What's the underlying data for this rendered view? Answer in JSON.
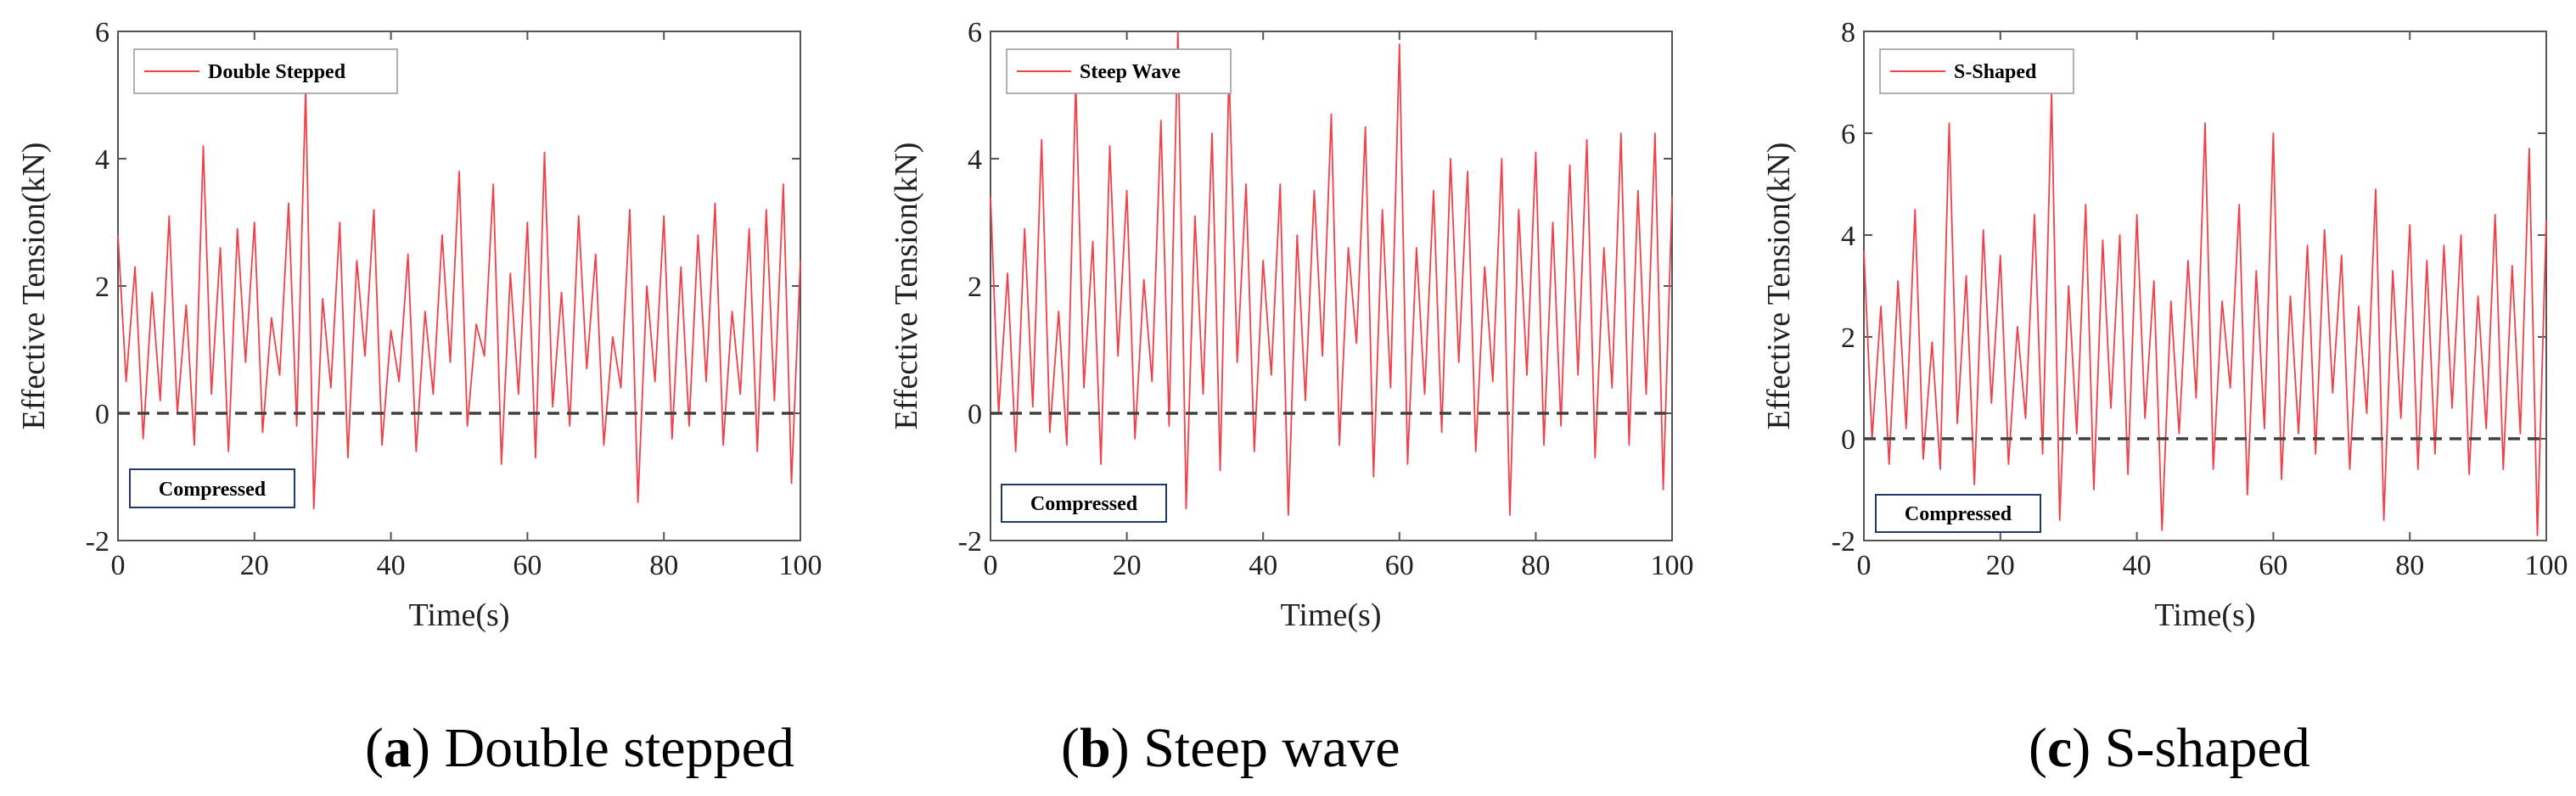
{
  "figure": {
    "captions": [
      {
        "letter": "a",
        "text": "Double stepped"
      },
      {
        "letter": "b",
        "text": "Steep wave"
      },
      {
        "letter": "c",
        "text": "S-shaped"
      }
    ]
  },
  "colors": {
    "series": "#f0404a",
    "threshold": "#404040",
    "axis": "#555555",
    "compressed_border": "#1f3a68"
  },
  "chart_data": [
    {
      "type": "line",
      "title": "",
      "xlabel": "Time(s)",
      "ylabel": "Effective Tension(kN)",
      "xlim": [
        0,
        100
      ],
      "ylim": [
        -2,
        6
      ],
      "xticks": [
        "0",
        "20",
        "40",
        "60",
        "80",
        "100"
      ],
      "yticks": [
        "-2",
        "0",
        "2",
        "4",
        "6"
      ],
      "threshold": 0,
      "annotation": "Compressed",
      "series": [
        {
          "name": "Double Stepped",
          "x": [
            0,
            1.2,
            2.5,
            3.7,
            5,
            6.2,
            7.5,
            8.7,
            10,
            11.2,
            12.5,
            13.7,
            15,
            16.2,
            17.5,
            18.7,
            20,
            21.2,
            22.5,
            23.7,
            25,
            26.2,
            27.5,
            28.7,
            30,
            31.2,
            32.5,
            33.7,
            35,
            36.2,
            37.5,
            38.7,
            40,
            41.2,
            42.5,
            43.7,
            45,
            46.2,
            47.5,
            48.7,
            50,
            51.2,
            52.5,
            53.7,
            55,
            56.2,
            57.5,
            58.7,
            60,
            61.2,
            62.5,
            63.7,
            65,
            66.2,
            67.5,
            68.7,
            70,
            71.2,
            72.5,
            73.7,
            75,
            76.2,
            77.5,
            78.7,
            80,
            81.2,
            82.5,
            83.7,
            85,
            86.2,
            87.5,
            88.7,
            90,
            91.2,
            92.5,
            93.7,
            95,
            96.2,
            97.5,
            98.7,
            100
          ],
          "values": [
            2.8,
            0.5,
            2.3,
            -0.4,
            1.9,
            0.2,
            3.1,
            0.0,
            1.7,
            -0.5,
            4.2,
            0.3,
            2.6,
            -0.6,
            2.9,
            0.8,
            3.0,
            -0.3,
            1.5,
            0.6,
            3.3,
            -0.2,
            5.1,
            -1.5,
            1.8,
            0.4,
            3.0,
            -0.7,
            2.4,
            0.9,
            3.2,
            -0.5,
            1.3,
            0.5,
            2.5,
            -0.6,
            1.6,
            0.3,
            2.8,
            0.8,
            3.8,
            -0.2,
            1.4,
            0.9,
            3.6,
            -0.8,
            2.2,
            0.3,
            3.0,
            -0.7,
            4.1,
            0.1,
            1.9,
            -0.2,
            3.1,
            0.7,
            2.5,
            -0.5,
            1.2,
            0.4,
            3.2,
            -1.4,
            2.0,
            0.5,
            3.1,
            -0.4,
            2.3,
            -0.2,
            2.8,
            0.5,
            3.3,
            -0.5,
            1.6,
            0.3,
            2.9,
            -0.6,
            3.2,
            0.2,
            3.6,
            -1.1,
            2.4
          ]
        }
      ]
    },
    {
      "type": "line",
      "title": "",
      "xlabel": "Time(s)",
      "ylabel": "Effective Tension(kN)",
      "xlim": [
        0,
        100
      ],
      "ylim": [
        -2,
        6
      ],
      "xticks": [
        "0",
        "20",
        "40",
        "60",
        "80",
        "100"
      ],
      "yticks": [
        "-2",
        "0",
        "2",
        "4",
        "6"
      ],
      "threshold": 0,
      "annotation": "Compressed",
      "series": [
        {
          "name": "Steep Wave",
          "x": [
            0,
            1.2,
            2.5,
            3.7,
            5,
            6.2,
            7.5,
            8.7,
            10,
            11.2,
            12.5,
            13.7,
            15,
            16.2,
            17.5,
            18.7,
            20,
            21.2,
            22.5,
            23.7,
            25,
            26.2,
            27.5,
            28.7,
            30,
            31.2,
            32.5,
            33.7,
            35,
            36.2,
            37.5,
            38.7,
            40,
            41.2,
            42.5,
            43.7,
            45,
            46.2,
            47.5,
            48.7,
            50,
            51.2,
            52.5,
            53.7,
            55,
            56.2,
            57.5,
            58.7,
            60,
            61.2,
            62.5,
            63.7,
            65,
            66.2,
            67.5,
            68.7,
            70,
            71.2,
            72.5,
            73.7,
            75,
            76.2,
            77.5,
            78.7,
            80,
            81.2,
            82.5,
            83.7,
            85,
            86.2,
            87.5,
            88.7,
            90,
            91.2,
            92.5,
            93.7,
            95,
            96.2,
            97.5,
            98.7,
            100
          ],
          "values": [
            3.4,
            0.0,
            2.2,
            -0.6,
            2.9,
            0.1,
            4.3,
            -0.3,
            1.6,
            -0.5,
            5.2,
            0.4,
            2.7,
            -0.8,
            4.2,
            0.9,
            3.5,
            -0.4,
            2.1,
            0.5,
            4.6,
            -0.2,
            6.0,
            -1.5,
            3.1,
            0.3,
            4.4,
            -0.9,
            5.4,
            0.8,
            3.6,
            -0.6,
            2.4,
            0.6,
            3.6,
            -1.6,
            2.8,
            0.2,
            3.5,
            0.9,
            4.7,
            -0.5,
            2.6,
            1.1,
            4.5,
            -1.0,
            3.2,
            0.4,
            5.8,
            -0.8,
            2.6,
            0.3,
            3.5,
            -0.3,
            4.0,
            0.8,
            3.8,
            -0.6,
            2.3,
            0.5,
            4.0,
            -1.6,
            3.2,
            0.6,
            4.1,
            -0.5,
            3.0,
            -0.2,
            3.9,
            0.6,
            4.3,
            -0.7,
            2.6,
            0.4,
            4.4,
            -0.5,
            3.5,
            0.3,
            4.4,
            -1.2,
            3.4
          ]
        }
      ]
    },
    {
      "type": "line",
      "title": "",
      "xlabel": "Time(s)",
      "ylabel": "Effective Tension(kN)",
      "xlim": [
        0,
        100
      ],
      "ylim": [
        -2,
        8
      ],
      "xticks": [
        "0",
        "20",
        "40",
        "60",
        "80",
        "100"
      ],
      "yticks": [
        "-2",
        "0",
        "2",
        "4",
        "6",
        "8"
      ],
      "threshold": 0,
      "annotation": "Compressed",
      "series": [
        {
          "name": "S-Shaped",
          "x": [
            0,
            1.2,
            2.5,
            3.7,
            5,
            6.2,
            7.5,
            8.7,
            10,
            11.2,
            12.5,
            13.7,
            15,
            16.2,
            17.5,
            18.7,
            20,
            21.2,
            22.5,
            23.7,
            25,
            26.2,
            27.5,
            28.7,
            30,
            31.2,
            32.5,
            33.7,
            35,
            36.2,
            37.5,
            38.7,
            40,
            41.2,
            42.5,
            43.7,
            45,
            46.2,
            47.5,
            48.7,
            50,
            51.2,
            52.5,
            53.7,
            55,
            56.2,
            57.5,
            58.7,
            60,
            61.2,
            62.5,
            63.7,
            65,
            66.2,
            67.5,
            68.7,
            70,
            71.2,
            72.5,
            73.7,
            75,
            76.2,
            77.5,
            78.7,
            80,
            81.2,
            82.5,
            83.7,
            85,
            86.2,
            87.5,
            88.7,
            90,
            91.2,
            92.5,
            93.7,
            95,
            96.2,
            97.5,
            98.7,
            100
          ],
          "values": [
            3.7,
            0.0,
            2.6,
            -0.5,
            3.1,
            0.2,
            4.5,
            -0.4,
            1.9,
            -0.6,
            6.2,
            0.3,
            3.2,
            -0.9,
            4.1,
            0.7,
            3.6,
            -0.5,
            2.2,
            0.4,
            4.4,
            -0.3,
            6.8,
            -1.6,
            3.0,
            0.1,
            4.6,
            -1.0,
            3.9,
            0.6,
            4.0,
            -0.7,
            4.4,
            0.4,
            3.1,
            -1.8,
            2.7,
            0.1,
            3.5,
            0.8,
            6.2,
            -0.6,
            2.7,
            1.0,
            4.6,
            -1.1,
            3.3,
            0.2,
            6.0,
            -0.8,
            2.8,
            0.1,
            3.8,
            -0.3,
            4.1,
            0.9,
            3.6,
            -0.6,
            2.6,
            0.5,
            4.9,
            -1.6,
            3.3,
            0.4,
            4.2,
            -0.6,
            3.5,
            -0.3,
            3.8,
            0.6,
            4.0,
            -0.7,
            2.8,
            0.2,
            4.4,
            -0.6,
            3.4,
            0.1,
            5.7,
            -1.9,
            4.3
          ]
        }
      ]
    }
  ]
}
